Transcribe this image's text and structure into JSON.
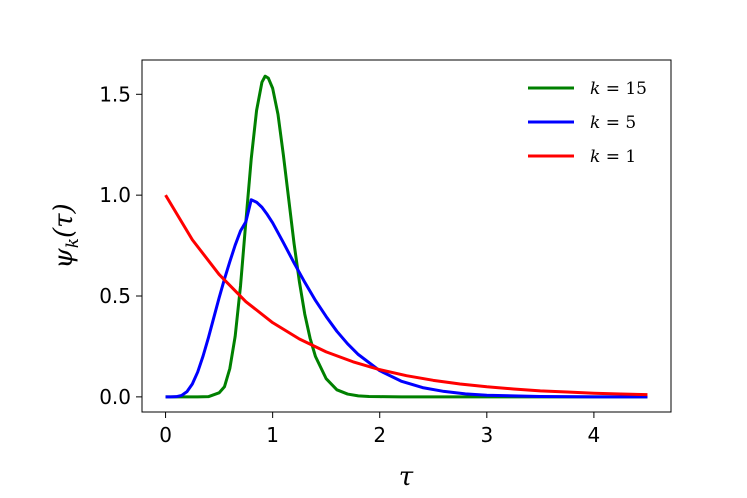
{
  "chart_data": {
    "type": "line",
    "title": "",
    "xlabel": "τ",
    "ylabel": "ψ_k(τ)",
    "ylabel_main": "ψ",
    "ylabel_sub": "k",
    "ylabel_tail": "(τ)",
    "xlim": [
      -0.22,
      4.72
    ],
    "ylim": [
      -0.075,
      1.67
    ],
    "xticks": [
      0,
      1,
      2,
      3,
      4
    ],
    "xtick_labels": [
      "0",
      "1",
      "2",
      "3",
      "4"
    ],
    "yticks": [
      0.0,
      0.5,
      1.0,
      1.5
    ],
    "ytick_labels": [
      "0.0",
      "0.5",
      "1.0",
      "1.5"
    ],
    "grid": false,
    "legend_position": "top-right",
    "series": [
      {
        "name": "k = 15",
        "color": "#008000",
        "x": [
          0,
          0.1,
          0.2,
          0.3,
          0.4,
          0.5,
          0.55,
          0.6,
          0.65,
          0.7,
          0.75,
          0.8,
          0.85,
          0.9,
          0.93,
          0.96,
          1.0,
          1.05,
          1.1,
          1.15,
          1.2,
          1.25,
          1.3,
          1.35,
          1.4,
          1.5,
          1.6,
          1.7,
          1.8,
          1.9,
          2.0,
          2.2,
          2.5,
          3.0,
          3.5,
          4.0,
          4.5
        ],
        "y": [
          0,
          0.0,
          0.0,
          0.0,
          0.001,
          0.02,
          0.05,
          0.14,
          0.3,
          0.55,
          0.87,
          1.18,
          1.42,
          1.56,
          1.59,
          1.58,
          1.53,
          1.4,
          1.2,
          0.98,
          0.76,
          0.57,
          0.41,
          0.29,
          0.2,
          0.09,
          0.035,
          0.014,
          0.005,
          0.002,
          0.001,
          0.0,
          0.0,
          0.0,
          0.0,
          0.0,
          0.0
        ]
      },
      {
        "name": "k = 5",
        "color": "#0000ff",
        "x": [
          0,
          0.05,
          0.1,
          0.15,
          0.2,
          0.25,
          0.3,
          0.35,
          0.4,
          0.45,
          0.5,
          0.55,
          0.6,
          0.65,
          0.7,
          0.75,
          0.8,
          0.85,
          0.9,
          0.95,
          1.0,
          1.1,
          1.2,
          1.3,
          1.4,
          1.5,
          1.6,
          1.7,
          1.8,
          2.0,
          2.2,
          2.4,
          2.6,
          2.8,
          3.0,
          3.5,
          4.0,
          4.5
        ],
        "y": [
          0,
          0.0,
          0.001,
          0.007,
          0.026,
          0.064,
          0.123,
          0.202,
          0.293,
          0.392,
          0.491,
          0.584,
          0.67,
          0.752,
          0.823,
          0.868,
          0.977,
          0.965,
          0.94,
          0.904,
          0.863,
          0.765,
          0.664,
          0.568,
          0.478,
          0.398,
          0.325,
          0.263,
          0.21,
          0.13,
          0.078,
          0.046,
          0.027,
          0.015,
          0.008,
          0.002,
          0.0,
          0.0
        ]
      },
      {
        "name": "k = 1",
        "color": "#ff0000",
        "x": [
          0,
          0.25,
          0.5,
          0.75,
          1.0,
          1.25,
          1.5,
          1.75,
          2.0,
          2.25,
          2.5,
          2.75,
          3.0,
          3.25,
          3.5,
          3.75,
          4.0,
          4.25,
          4.5
        ],
        "y": [
          1.0,
          0.779,
          0.607,
          0.472,
          0.368,
          0.287,
          0.223,
          0.174,
          0.135,
          0.105,
          0.082,
          0.064,
          0.05,
          0.039,
          0.03,
          0.024,
          0.018,
          0.014,
          0.011
        ]
      }
    ],
    "legend": [
      {
        "label_main": "k",
        "label_rest": " = 15",
        "color": "#008000"
      },
      {
        "label_main": "k",
        "label_rest": " = 5",
        "color": "#0000ff"
      },
      {
        "label_main": "k",
        "label_rest": " = 1",
        "color": "#ff0000"
      }
    ]
  }
}
